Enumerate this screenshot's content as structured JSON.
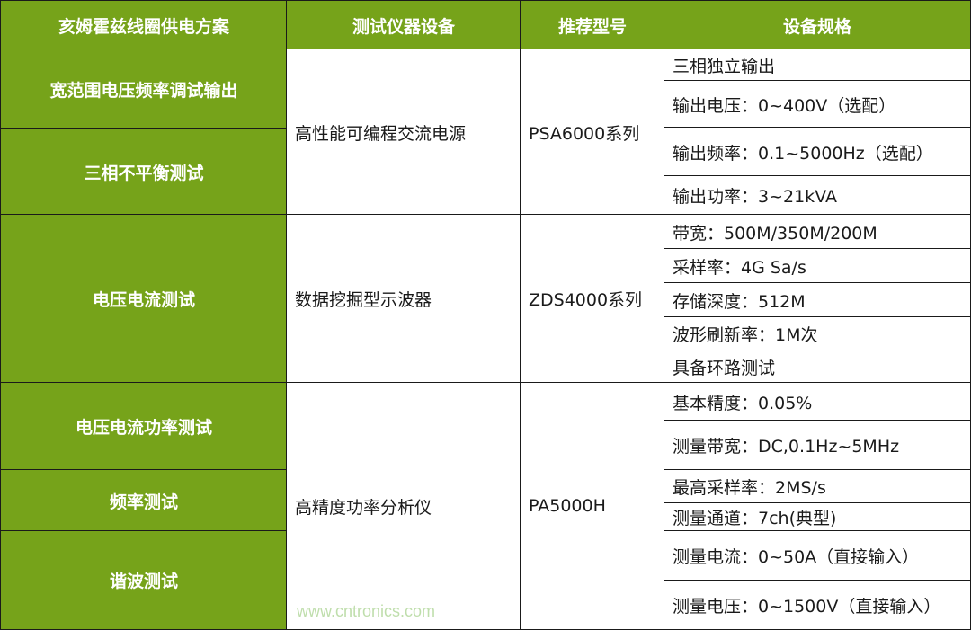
{
  "headers": [
    "亥姆霍兹线圈供电方案",
    "测试仪器设备",
    "推荐型号",
    "设备规格"
  ],
  "groups": [
    {
      "schemes": [
        "宽范围电压频率调试输出",
        "三相不平衡测试"
      ],
      "device": "高性能可编程交流电源",
      "model": "PSA6000系列",
      "specs": [
        "三相独立输出",
        "输出电压：0~400V（选配）",
        "输出频率：0.1~5000Hz（选配）",
        "输出功率：3~21kVA"
      ]
    },
    {
      "schemes": [
        "电压电流测试"
      ],
      "device": "数据挖掘型示波器",
      "model": "ZDS4000系列",
      "specs": [
        "带宽：500M/350M/200M",
        "采样率：4G Sa/s",
        "存储深度：512M",
        "波形刷新率：1M次",
        "具备环路测试"
      ]
    },
    {
      "schemes": [
        "电压电流功率测试",
        "频率测试",
        "谐波测试"
      ],
      "device": "高精度功率分析仪",
      "model": "PA5000H",
      "specs": [
        "基本精度：0.05%",
        "测量带宽：DC,0.1Hz~5MHz",
        "最高采样率：2MS/s",
        "测量通道：7ch(典型)",
        "测量电流：0~50A（直接输入）",
        "测量电压：0~1500V（直接输入）"
      ]
    }
  ],
  "watermark": "www.cntronics.com",
  "colors": {
    "header_bg": "#76a31a",
    "header_text": "#ffffff",
    "border": "#1a1a1a"
  }
}
